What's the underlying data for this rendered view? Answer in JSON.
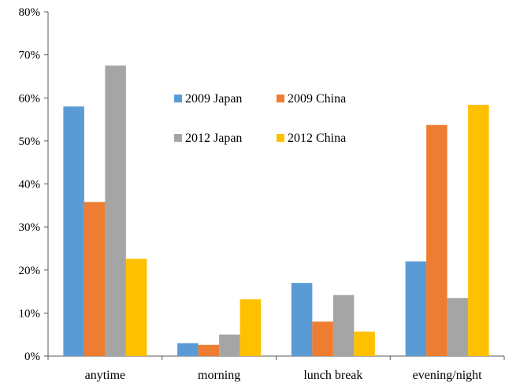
{
  "chart_data": {
    "type": "bar",
    "title": "",
    "xlabel": "",
    "ylabel": "",
    "categories": [
      "anytime",
      "morning",
      "lunch break",
      "evening/night"
    ],
    "series": [
      {
        "name": "2009 Japan",
        "color": "#5B9BD5",
        "values": [
          58,
          3,
          17,
          22
        ]
      },
      {
        "name": "2009 China",
        "color": "#ED7D31",
        "values": [
          35.8,
          2.6,
          8,
          53.7
        ]
      },
      {
        "name": "2012 Japan",
        "color": "#A5A5A5",
        "values": [
          67.5,
          5,
          14.2,
          13.5
        ]
      },
      {
        "name": "2012 China",
        "color": "#FFC000",
        "values": [
          22.6,
          13.2,
          5.7,
          58.4
        ]
      }
    ],
    "ylim": [
      0,
      80
    ],
    "yticks": [
      0,
      10,
      20,
      30,
      40,
      50,
      60,
      70,
      80
    ],
    "ytick_labels": [
      "0%",
      "10%",
      "20%",
      "30%",
      "40%",
      "50%",
      "60%",
      "70%",
      "80%"
    ],
    "grid": false,
    "legend_position": "inside-top-center"
  }
}
